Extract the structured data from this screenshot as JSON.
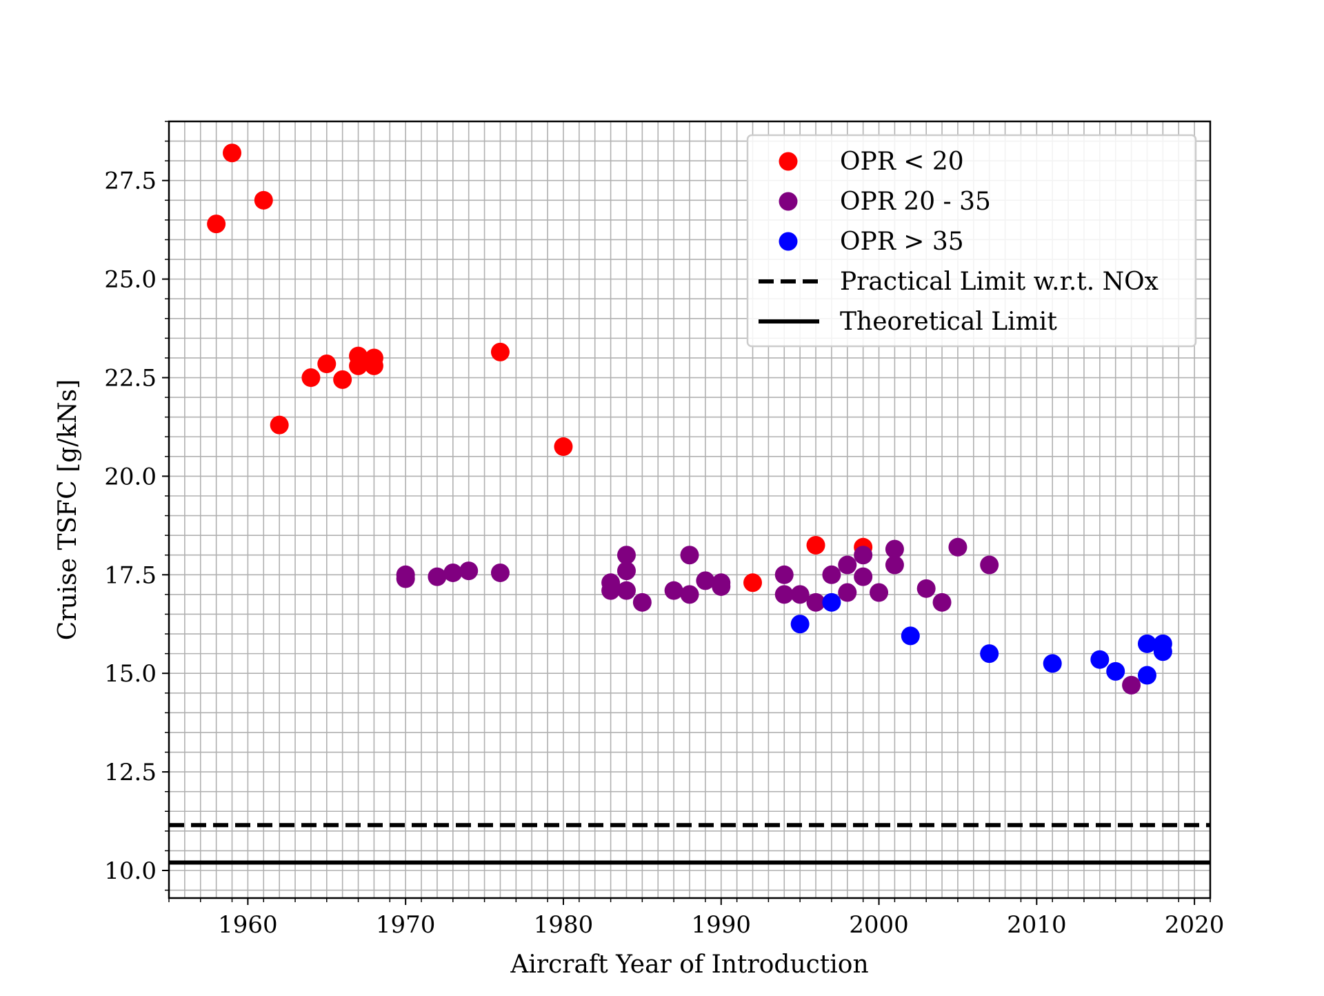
{
  "chart_data": {
    "type": "scatter",
    "title": "",
    "xlabel": "Aircraft Year of Introduction",
    "ylabel": "Cruise TSFC [g/kNs]",
    "xlim": [
      1955,
      2021
    ],
    "ylim": [
      9.3,
      29.0
    ],
    "xticks": [
      1960,
      1970,
      1980,
      1990,
      2000,
      2010,
      2020
    ],
    "yticks": [
      10.0,
      12.5,
      15.0,
      17.5,
      20.0,
      22.5,
      25.0,
      27.5
    ],
    "x_tick_labels": [
      "1960",
      "1970",
      "1980",
      "1990",
      "2000",
      "2010",
      "2020"
    ],
    "y_tick_labels": [
      "10.0",
      "12.5",
      "15.0",
      "17.5",
      "20.0",
      "22.5",
      "25.0",
      "27.5"
    ],
    "x_minor_step": 1,
    "y_minor_step": 0.5,
    "grid": true,
    "legend_position": "top-right",
    "series": [
      {
        "name": "OPR < 20",
        "color": "#ff0000",
        "points": [
          [
            1958,
            26.4
          ],
          [
            1959,
            28.2
          ],
          [
            1961,
            27.0
          ],
          [
            1962,
            21.3
          ],
          [
            1964,
            22.5
          ],
          [
            1965,
            22.85
          ],
          [
            1966,
            22.45
          ],
          [
            1967,
            23.05
          ],
          [
            1967,
            22.8
          ],
          [
            1968,
            23.0
          ],
          [
            1968,
            22.8
          ],
          [
            1976,
            23.15
          ],
          [
            1980,
            20.75
          ],
          [
            1992,
            17.3
          ],
          [
            1996,
            18.25
          ],
          [
            1999,
            18.2
          ]
        ]
      },
      {
        "name": "OPR 20 - 35",
        "color": "#800080",
        "points": [
          [
            1970,
            17.5
          ],
          [
            1970,
            17.4
          ],
          [
            1972,
            17.45
          ],
          [
            1973,
            17.55
          ],
          [
            1974,
            17.6
          ],
          [
            1976,
            17.55
          ],
          [
            1983,
            17.3
          ],
          [
            1983,
            17.1
          ],
          [
            1984,
            18.0
          ],
          [
            1984,
            17.6
          ],
          [
            1984,
            17.1
          ],
          [
            1985,
            16.8
          ],
          [
            1987,
            17.1
          ],
          [
            1988,
            18.0
          ],
          [
            1988,
            17.0
          ],
          [
            1989,
            17.35
          ],
          [
            1990,
            17.3
          ],
          [
            1990,
            17.2
          ],
          [
            1994,
            17.5
          ],
          [
            1994,
            17.0
          ],
          [
            1995,
            17.0
          ],
          [
            1996,
            16.8
          ],
          [
            1997,
            17.5
          ],
          [
            1998,
            17.75
          ],
          [
            1998,
            17.05
          ],
          [
            1999,
            18.0
          ],
          [
            1999,
            17.45
          ],
          [
            2000,
            17.05
          ],
          [
            2001,
            18.15
          ],
          [
            2001,
            17.75
          ],
          [
            2003,
            17.15
          ],
          [
            2004,
            16.8
          ],
          [
            2005,
            18.2
          ],
          [
            2007,
            17.75
          ],
          [
            2016,
            14.7
          ]
        ]
      },
      {
        "name": "OPR > 35",
        "color": "#0000ff",
        "points": [
          [
            1995,
            16.25
          ],
          [
            1997,
            16.8
          ],
          [
            2002,
            15.95
          ],
          [
            2007,
            15.5
          ],
          [
            2011,
            15.25
          ],
          [
            2014,
            15.35
          ],
          [
            2015,
            15.05
          ],
          [
            2017,
            14.95
          ],
          [
            2017,
            15.75
          ],
          [
            2018,
            15.75
          ],
          [
            2018,
            15.55
          ]
        ]
      }
    ],
    "reference_lines": [
      {
        "name": "Practical Limit w.r.t. NOx",
        "y": 11.15,
        "style": "dashed",
        "color": "#000000"
      },
      {
        "name": "Theoretical Limit",
        "y": 10.2,
        "style": "solid",
        "color": "#000000"
      }
    ]
  }
}
